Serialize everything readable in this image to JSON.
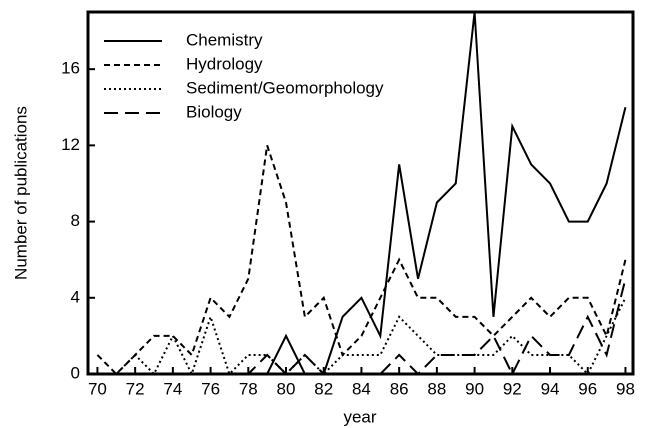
{
  "chart_data": {
    "type": "line",
    "x": [
      70,
      71,
      72,
      73,
      74,
      75,
      76,
      77,
      78,
      79,
      80,
      81,
      82,
      83,
      84,
      85,
      86,
      87,
      88,
      89,
      90,
      91,
      92,
      93,
      94,
      95,
      96,
      97,
      98
    ],
    "series": [
      {
        "name": "Chemistry",
        "color": "#000000",
        "dash": "solid",
        "values": [
          0,
          0,
          0,
          0,
          0,
          0,
          0,
          0,
          0,
          0,
          2,
          0,
          0,
          3,
          4,
          2,
          11,
          5,
          9,
          10,
          19,
          3,
          13,
          11,
          10,
          8,
          8,
          10,
          14
        ]
      },
      {
        "name": "Hydrology",
        "color": "#000000",
        "dash": "short",
        "values": [
          1,
          0,
          1,
          2,
          2,
          1,
          4,
          3,
          5,
          12,
          9,
          3,
          4,
          1,
          2,
          4,
          6,
          4,
          4,
          3,
          3,
          2,
          3,
          4,
          3,
          4,
          4,
          2,
          6
        ]
      },
      {
        "name": "Sediment/Geomorphology",
        "color": "#000000",
        "dash": "dotted",
        "values": [
          0,
          0,
          1,
          0,
          2,
          0,
          3,
          0,
          1,
          1,
          0,
          1,
          0,
          1,
          1,
          1,
          3,
          2,
          1,
          1,
          1,
          1,
          2,
          1,
          1,
          1,
          0,
          2,
          4
        ]
      },
      {
        "name": "Biology",
        "color": "#000000",
        "dash": "long",
        "values": [
          0,
          0,
          0,
          0,
          0,
          0,
          0,
          0,
          0,
          1,
          0,
          1,
          0,
          0,
          0,
          0,
          1,
          0,
          1,
          1,
          1,
          2,
          0,
          2,
          1,
          1,
          3,
          1,
          5
        ]
      }
    ],
    "xlabel": "year",
    "ylabel": "Number of publications",
    "xlim": [
      69.5,
      98.4
    ],
    "ylim": [
      0,
      19
    ],
    "xticks": [
      70,
      72,
      74,
      76,
      78,
      80,
      82,
      84,
      86,
      88,
      90,
      92,
      94,
      96,
      98
    ],
    "yticks": [
      0,
      4,
      8,
      12,
      16
    ],
    "legend": "upper left"
  }
}
